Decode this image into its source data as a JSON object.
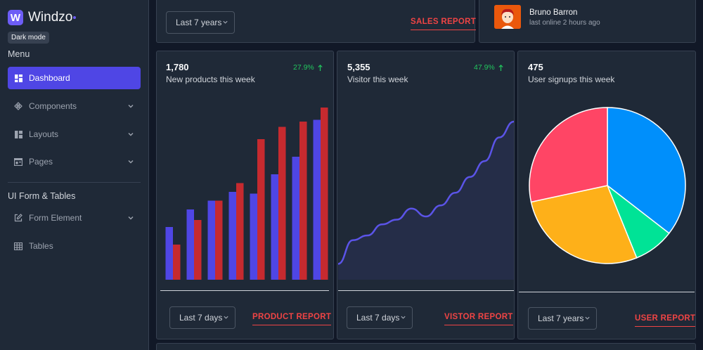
{
  "brand": {
    "logo_letter": "W",
    "name": "Windzo"
  },
  "dark_mode_label": "Dark mode",
  "menu_heading": "Menu",
  "menu_items": [
    {
      "label": "Dashboard",
      "icon": "grid-icon",
      "active": true
    },
    {
      "label": "Components",
      "icon": "diamond-icon",
      "chevron": true
    },
    {
      "label": "Layouts",
      "icon": "layout-icon",
      "chevron": true
    },
    {
      "label": "Pages",
      "icon": "page-icon",
      "chevron": true
    }
  ],
  "forms_heading": "UI Form & Tables",
  "form_items": [
    {
      "label": "Form Element",
      "icon": "edit-icon",
      "chevron": true
    },
    {
      "label": "Tables",
      "icon": "table-icon"
    }
  ],
  "top_sales": {
    "select_value": "Last 7 years",
    "report_label": "SALES REPORT"
  },
  "user": {
    "name": "Bruno Barron",
    "status": "last online 2 hours ago"
  },
  "products_card": {
    "value": "1,780",
    "label": "New products this week",
    "change": "27.9%",
    "select_value": "Last 7 days",
    "report_label": "PRODUCT REPORT"
  },
  "visitors_card": {
    "value": "5,355",
    "label": "Visitor this week",
    "change": "47.9%",
    "select_value": "Last 7 days",
    "report_label": "VISTOR REPORT"
  },
  "signups_card": {
    "value": "475",
    "label": "User signups this week",
    "select_value": "Last 7 years",
    "report_label": "USER REPORT"
  },
  "colors": {
    "accent": "#4f46e5",
    "bar_a": "#4f46e5",
    "bar_b": "#c62a2f",
    "line": "#5b54e8",
    "positive": "#22c55e",
    "report": "#ef4444",
    "pie": [
      "#ff4565",
      "#008ffb",
      "#00e396",
      "#feb019"
    ]
  },
  "chart_data": [
    {
      "type": "bar",
      "series": [
        {
          "values": [
            30,
            40,
            45,
            50,
            49,
            60,
            70,
            91
          ]
        },
        {
          "values": [
            20,
            34,
            45,
            55,
            80,
            87,
            90,
            98
          ]
        }
      ],
      "ylim": [
        0,
        100
      ]
    },
    {
      "type": "area",
      "values": [
        10,
        25,
        28,
        35,
        38,
        45,
        40,
        47,
        55,
        65,
        75,
        90,
        100
      ],
      "ylim": [
        0,
        100
      ]
    },
    {
      "type": "pie",
      "values": [
        44,
        55,
        13,
        43
      ],
      "slice_order": [
        "pink",
        "blue",
        "green",
        "orange"
      ]
    }
  ]
}
